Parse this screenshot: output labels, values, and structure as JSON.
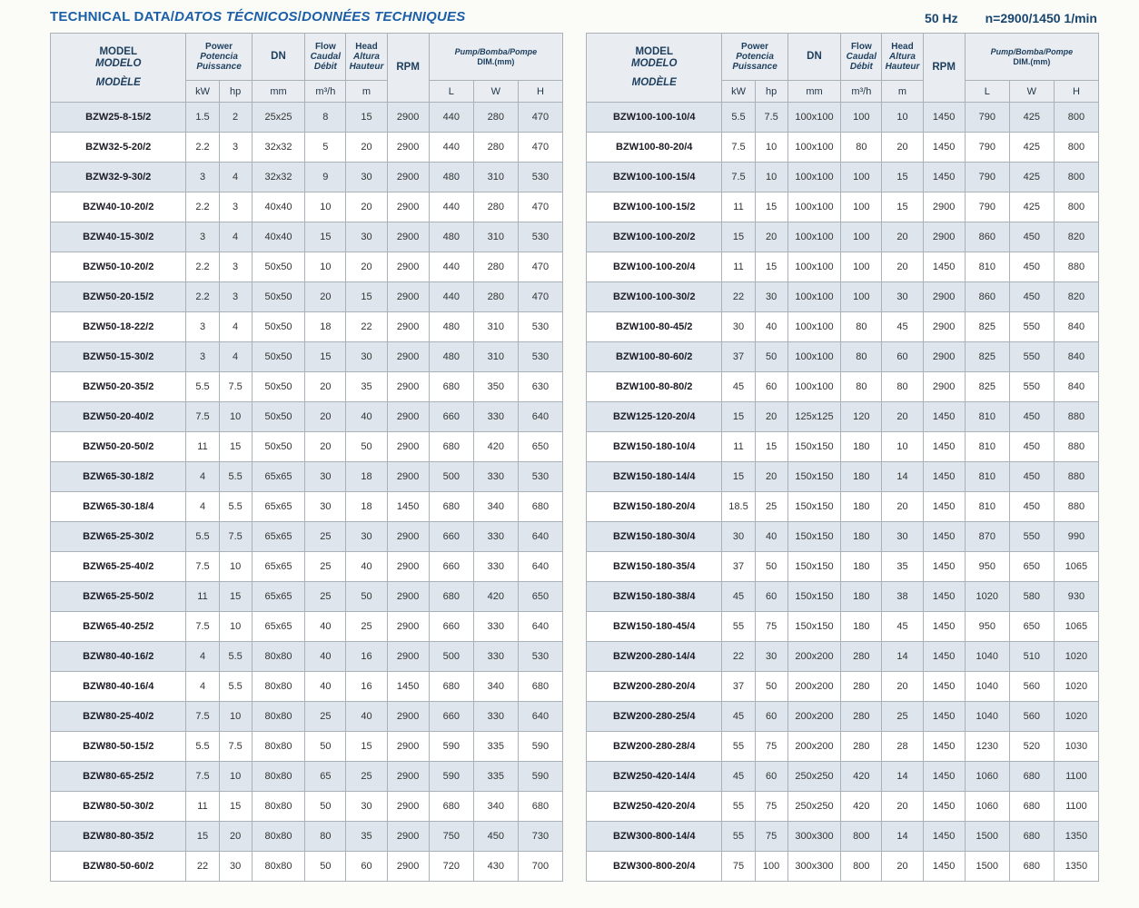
{
  "page": {
    "title_parts": [
      "TECHNICAL DATA",
      "/",
      "DATOS TÉCNICOS",
      "/",
      "DONNÉES TECHNIQUES"
    ],
    "frequency": "50 Hz",
    "speed": "n=2900/1450 1/min"
  },
  "colors": {
    "title_blue": "#1b5fa8",
    "header_text": "#1d3e5e",
    "header_bg": "#e9edf1",
    "row_alt_bg": "#dee5ec",
    "border": "#a9b1b9"
  },
  "header": {
    "model": [
      "MODEL",
      "MODELO",
      "MODÈLE"
    ],
    "power": [
      "Power",
      "Potencia",
      "Puissance"
    ],
    "power_units": [
      "kW",
      "hp"
    ],
    "dn": "DN",
    "dn_unit": "mm",
    "flow": [
      "Flow",
      "Caudal",
      "Débit"
    ],
    "flow_unit": "m³/h",
    "head": [
      "Head",
      "Altura",
      "Hauteur"
    ],
    "head_unit": "m",
    "rpm": "RPM",
    "dim": [
      "Pump/Bomba/Pompe",
      "DIM.(mm)"
    ],
    "dim_units": [
      "L",
      "W",
      "H"
    ]
  },
  "left_table": {
    "rows": [
      [
        "BZW25-8-15/2",
        "1.5",
        "2",
        "25x25",
        "8",
        "15",
        "2900",
        "440",
        "280",
        "470"
      ],
      [
        "BZW32-5-20/2",
        "2.2",
        "3",
        "32x32",
        "5",
        "20",
        "2900",
        "440",
        "280",
        "470"
      ],
      [
        "BZW32-9-30/2",
        "3",
        "4",
        "32x32",
        "9",
        "30",
        "2900",
        "480",
        "310",
        "530"
      ],
      [
        "BZW40-10-20/2",
        "2.2",
        "3",
        "40x40",
        "10",
        "20",
        "2900",
        "440",
        "280",
        "470"
      ],
      [
        "BZW40-15-30/2",
        "3",
        "4",
        "40x40",
        "15",
        "30",
        "2900",
        "480",
        "310",
        "530"
      ],
      [
        "BZW50-10-20/2",
        "2.2",
        "3",
        "50x50",
        "10",
        "20",
        "2900",
        "440",
        "280",
        "470"
      ],
      [
        "BZW50-20-15/2",
        "2.2",
        "3",
        "50x50",
        "20",
        "15",
        "2900",
        "440",
        "280",
        "470"
      ],
      [
        "BZW50-18-22/2",
        "3",
        "4",
        "50x50",
        "18",
        "22",
        "2900",
        "480",
        "310",
        "530"
      ],
      [
        "BZW50-15-30/2",
        "3",
        "4",
        "50x50",
        "15",
        "30",
        "2900",
        "480",
        "310",
        "530"
      ],
      [
        "BZW50-20-35/2",
        "5.5",
        "7.5",
        "50x50",
        "20",
        "35",
        "2900",
        "680",
        "350",
        "630"
      ],
      [
        "BZW50-20-40/2",
        "7.5",
        "10",
        "50x50",
        "20",
        "40",
        "2900",
        "660",
        "330",
        "640"
      ],
      [
        "BZW50-20-50/2",
        "11",
        "15",
        "50x50",
        "20",
        "50",
        "2900",
        "680",
        "420",
        "650"
      ],
      [
        "BZW65-30-18/2",
        "4",
        "5.5",
        "65x65",
        "30",
        "18",
        "2900",
        "500",
        "330",
        "530"
      ],
      [
        "BZW65-30-18/4",
        "4",
        "5.5",
        "65x65",
        "30",
        "18",
        "1450",
        "680",
        "340",
        "680"
      ],
      [
        "BZW65-25-30/2",
        "5.5",
        "7.5",
        "65x65",
        "25",
        "30",
        "2900",
        "660",
        "330",
        "640"
      ],
      [
        "BZW65-25-40/2",
        "7.5",
        "10",
        "65x65",
        "25",
        "40",
        "2900",
        "660",
        "330",
        "640"
      ],
      [
        "BZW65-25-50/2",
        "11",
        "15",
        "65x65",
        "25",
        "50",
        "2900",
        "680",
        "420",
        "650"
      ],
      [
        "BZW65-40-25/2",
        "7.5",
        "10",
        "65x65",
        "40",
        "25",
        "2900",
        "660",
        "330",
        "640"
      ],
      [
        "BZW80-40-16/2",
        "4",
        "5.5",
        "80x80",
        "40",
        "16",
        "2900",
        "500",
        "330",
        "530"
      ],
      [
        "BZW80-40-16/4",
        "4",
        "5.5",
        "80x80",
        "40",
        "16",
        "1450",
        "680",
        "340",
        "680"
      ],
      [
        "BZW80-25-40/2",
        "7.5",
        "10",
        "80x80",
        "25",
        "40",
        "2900",
        "660",
        "330",
        "640"
      ],
      [
        "BZW80-50-15/2",
        "5.5",
        "7.5",
        "80x80",
        "50",
        "15",
        "2900",
        "590",
        "335",
        "590"
      ],
      [
        "BZW80-65-25/2",
        "7.5",
        "10",
        "80x80",
        "65",
        "25",
        "2900",
        "590",
        "335",
        "590"
      ],
      [
        "BZW80-50-30/2",
        "11",
        "15",
        "80x80",
        "50",
        "30",
        "2900",
        "680",
        "340",
        "680"
      ],
      [
        "BZW80-80-35/2",
        "15",
        "20",
        "80x80",
        "80",
        "35",
        "2900",
        "750",
        "450",
        "730"
      ],
      [
        "BZW80-50-60/2",
        "22",
        "30",
        "80x80",
        "50",
        "60",
        "2900",
        "720",
        "430",
        "700"
      ]
    ]
  },
  "right_table": {
    "rows": [
      [
        "BZW100-100-10/4",
        "5.5",
        "7.5",
        "100x100",
        "100",
        "10",
        "1450",
        "790",
        "425",
        "800"
      ],
      [
        "BZW100-80-20/4",
        "7.5",
        "10",
        "100x100",
        "80",
        "20",
        "1450",
        "790",
        "425",
        "800"
      ],
      [
        "BZW100-100-15/4",
        "7.5",
        "10",
        "100x100",
        "100",
        "15",
        "1450",
        "790",
        "425",
        "800"
      ],
      [
        "BZW100-100-15/2",
        "11",
        "15",
        "100x100",
        "100",
        "15",
        "2900",
        "790",
        "425",
        "800"
      ],
      [
        "BZW100-100-20/2",
        "15",
        "20",
        "100x100",
        "100",
        "20",
        "2900",
        "860",
        "450",
        "820"
      ],
      [
        "BZW100-100-20/4",
        "11",
        "15",
        "100x100",
        "100",
        "20",
        "1450",
        "810",
        "450",
        "880"
      ],
      [
        "BZW100-100-30/2",
        "22",
        "30",
        "100x100",
        "100",
        "30",
        "2900",
        "860",
        "450",
        "820"
      ],
      [
        "BZW100-80-45/2",
        "30",
        "40",
        "100x100",
        "80",
        "45",
        "2900",
        "825",
        "550",
        "840"
      ],
      [
        "BZW100-80-60/2",
        "37",
        "50",
        "100x100",
        "80",
        "60",
        "2900",
        "825",
        "550",
        "840"
      ],
      [
        "BZW100-80-80/2",
        "45",
        "60",
        "100x100",
        "80",
        "80",
        "2900",
        "825",
        "550",
        "840"
      ],
      [
        "BZW125-120-20/4",
        "15",
        "20",
        "125x125",
        "120",
        "20",
        "1450",
        "810",
        "450",
        "880"
      ],
      [
        "BZW150-180-10/4",
        "11",
        "15",
        "150x150",
        "180",
        "10",
        "1450",
        "810",
        "450",
        "880"
      ],
      [
        "BZW150-180-14/4",
        "15",
        "20",
        "150x150",
        "180",
        "14",
        "1450",
        "810",
        "450",
        "880"
      ],
      [
        "BZW150-180-20/4",
        "18.5",
        "25",
        "150x150",
        "180",
        "20",
        "1450",
        "810",
        "450",
        "880"
      ],
      [
        "BZW150-180-30/4",
        "30",
        "40",
        "150x150",
        "180",
        "30",
        "1450",
        "870",
        "550",
        "990"
      ],
      [
        "BZW150-180-35/4",
        "37",
        "50",
        "150x150",
        "180",
        "35",
        "1450",
        "950",
        "650",
        "1065"
      ],
      [
        "BZW150-180-38/4",
        "45",
        "60",
        "150x150",
        "180",
        "38",
        "1450",
        "1020",
        "580",
        "930"
      ],
      [
        "BZW150-180-45/4",
        "55",
        "75",
        "150x150",
        "180",
        "45",
        "1450",
        "950",
        "650",
        "1065"
      ],
      [
        "BZW200-280-14/4",
        "22",
        "30",
        "200x200",
        "280",
        "14",
        "1450",
        "1040",
        "510",
        "1020"
      ],
      [
        "BZW200-280-20/4",
        "37",
        "50",
        "200x200",
        "280",
        "20",
        "1450",
        "1040",
        "560",
        "1020"
      ],
      [
        "BZW200-280-25/4",
        "45",
        "60",
        "200x200",
        "280",
        "25",
        "1450",
        "1040",
        "560",
        "1020"
      ],
      [
        "BZW200-280-28/4",
        "55",
        "75",
        "200x200",
        "280",
        "28",
        "1450",
        "1230",
        "520",
        "1030"
      ],
      [
        "BZW250-420-14/4",
        "45",
        "60",
        "250x250",
        "420",
        "14",
        "1450",
        "1060",
        "680",
        "1100"
      ],
      [
        "BZW250-420-20/4",
        "55",
        "75",
        "250x250",
        "420",
        "20",
        "1450",
        "1060",
        "680",
        "1100"
      ],
      [
        "BZW300-800-14/4",
        "55",
        "75",
        "300x300",
        "800",
        "14",
        "1450",
        "1500",
        "680",
        "1350"
      ],
      [
        "BZW300-800-20/4",
        "75",
        "100",
        "300x300",
        "800",
        "20",
        "1450",
        "1500",
        "680",
        "1350"
      ]
    ]
  }
}
